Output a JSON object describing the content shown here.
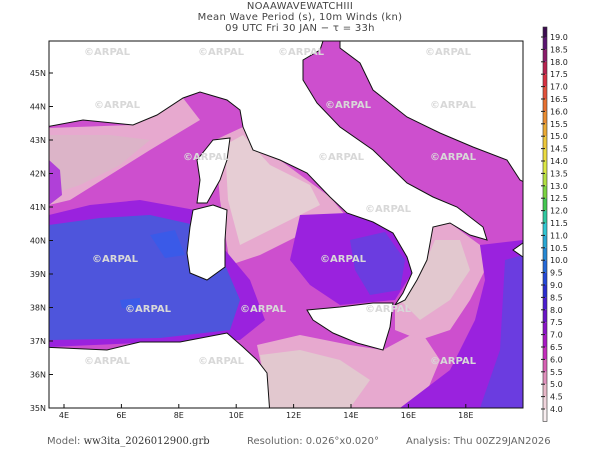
{
  "header": {
    "line1": "NOAAWAVEWATCHIII",
    "line2": "Mean Wave Period (s), 10m Winds (kn)",
    "line3": "09 UTC Fri 30 JAN  −  τ = 33h"
  },
  "map": {
    "lon_labels": [
      "4E",
      "6E",
      "8E",
      "10E",
      "12E",
      "14E",
      "16E",
      "18E"
    ],
    "lat_labels": [
      "35N",
      "36N",
      "37N",
      "38N",
      "39N",
      "40N",
      "41N",
      "42N",
      "43N",
      "44N",
      "45N"
    ],
    "watermark": "ARPAL",
    "sea_colors": {
      "pale": "#f1dde3",
      "pink": "#e7a9cf",
      "magenta": "#cd4fce",
      "purple": "#9a22de",
      "violet": "#6b3ce0",
      "blue": "#4e55dc",
      "deepblue": "#3a5ae8"
    }
  },
  "colorbar": {
    "labels": [
      "19.0",
      "18.5",
      "18.0",
      "17.5",
      "17.0",
      "16.5",
      "16.0",
      "15.5",
      "15.0",
      "14.5",
      "14.0",
      "13.5",
      "13.0",
      "12.5",
      "12.0",
      "11.5",
      "11.0",
      "10.5",
      "10.0",
      "9.5",
      "9.0",
      "8.5",
      "8.0",
      "7.5",
      "7.0",
      "6.5",
      "6.0",
      "5.5",
      "5.0",
      "4.5",
      "4.0"
    ],
    "colors": [
      "#5a1470",
      "#8a1a6a",
      "#b8224e",
      "#d83040",
      "#e2503a",
      "#e87030",
      "#ea8c30",
      "#ecaa34",
      "#eec83a",
      "#ecdc40",
      "#dce844",
      "#b4e040",
      "#7cd440",
      "#44c850",
      "#30c8a0",
      "#30c8d4",
      "#28a8d4",
      "#2488d4",
      "#2468d8",
      "#2448d8",
      "#2a2cd0",
      "#4a1cd0",
      "#6a14c8",
      "#8a14c8",
      "#a818c4",
      "#c42cbc",
      "#d860b4",
      "#e090bc",
      "#e8b8c8",
      "#f0d4dc",
      "#f8eef0"
    ]
  },
  "footer": {
    "model_label": "Model:",
    "model_value": "ww3ita_2026012900.grb",
    "resolution": "Resolution: 0.026°x0.020°",
    "analysis": "Analysis: Thu  00Z29JAN2026"
  }
}
